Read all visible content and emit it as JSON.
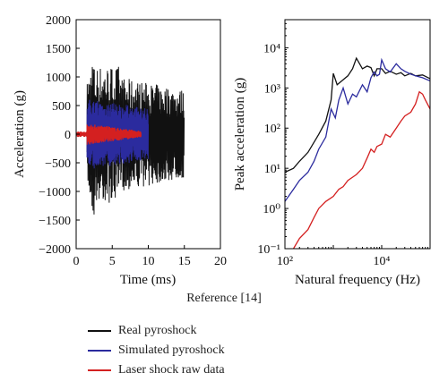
{
  "caption": "Reference [14]",
  "legend": {
    "items": [
      {
        "label": "Real pyroshock",
        "color": "#111111"
      },
      {
        "label": "Simulated pyroshock",
        "color": "#2b2b9e"
      },
      {
        "label": "Laser shock raw data",
        "color": "#d42020"
      }
    ]
  },
  "chart_data": [
    {
      "type": "line",
      "title": "",
      "xlabel": "Time (ms)",
      "ylabel": "Acceleration (g)",
      "xlim": [
        0,
        20
      ],
      "ylim": [
        -2000,
        2000
      ],
      "xticks": [
        "0",
        "5",
        "10",
        "15",
        "20"
      ],
      "yticks": [
        "2000",
        "1500",
        "1000",
        "500",
        "0",
        "−500",
        "−1000",
        "−1500",
        "−2000"
      ],
      "grid": false,
      "series": [
        {
          "name": "Real pyroshock",
          "color": "#111111",
          "time_range": [
            1.5,
            15
          ],
          "peak_max": 1750,
          "peak_min": -1650
        },
        {
          "name": "Simulated pyroshock",
          "color": "#2b2b9e",
          "time_range": [
            1.5,
            10
          ],
          "peak_max": 700,
          "peak_min": -650
        },
        {
          "name": "Laser shock raw data",
          "color": "#d42020",
          "time_range": [
            0,
            9
          ],
          "peak_max": 200,
          "peak_min": -200
        }
      ]
    },
    {
      "type": "line",
      "title": "",
      "xlabel": "Natural frequency (Hz)",
      "ylabel": "Peak acceleration (g)",
      "xscale": "log",
      "yscale": "log",
      "xlim": [
        100,
        100000
      ],
      "ylim": [
        0.1,
        50000
      ],
      "xticks": [
        "10²",
        "10⁴"
      ],
      "yticks": [
        "10⁴",
        "10³",
        "10²",
        "10¹",
        "10⁰",
        "10⁻¹"
      ],
      "grid": false,
      "series": [
        {
          "name": "Real pyroshock",
          "color": "#111111",
          "x": [
            100,
            150,
            200,
            300,
            500,
            700,
            900,
            1000,
            1200,
            1500,
            2000,
            2500,
            3000,
            4000,
            5000,
            6000,
            7000,
            8000,
            10000,
            12000,
            15000,
            20000,
            25000,
            30000,
            40000,
            50000,
            70000,
            100000
          ],
          "y": [
            8,
            10,
            15,
            25,
            70,
            150,
            500,
            2300,
            1200,
            1500,
            2000,
            3000,
            5500,
            3000,
            3500,
            3200,
            2000,
            3000,
            3000,
            2300,
            2600,
            2200,
            2400,
            2000,
            2300,
            2000,
            2100,
            1700
          ]
        },
        {
          "name": "Simulated pyroshock",
          "color": "#2b2b9e",
          "x": [
            100,
            150,
            200,
            300,
            400,
            500,
            700,
            900,
            1100,
            1300,
            1600,
            2000,
            2500,
            3000,
            4000,
            5000,
            6000,
            7000,
            8000,
            9000,
            10000,
            12000,
            15000,
            20000,
            25000,
            30000,
            40000,
            50000,
            70000,
            100000
          ],
          "y": [
            1.5,
            3,
            5,
            8,
            15,
            30,
            60,
            300,
            180,
            500,
            1000,
            400,
            700,
            600,
            1200,
            800,
            1800,
            2500,
            2000,
            2200,
            5000,
            3000,
            2500,
            4000,
            3000,
            2600,
            2200,
            2000,
            1800,
            1500
          ]
        },
        {
          "name": "Laser shock raw data",
          "color": "#d42020",
          "x": [
            150,
            200,
            300,
            400,
            500,
            700,
            1000,
            1300,
            1600,
            2000,
            2500,
            3000,
            4000,
            5000,
            6000,
            7000,
            8000,
            10000,
            12000,
            15000,
            20000,
            25000,
            30000,
            40000,
            50000,
            60000,
            70000,
            80000,
            100000
          ],
          "y": [
            0.1,
            0.18,
            0.3,
            0.6,
            1,
            1.5,
            2,
            3,
            3.5,
            5,
            6,
            7,
            10,
            18,
            30,
            25,
            35,
            40,
            70,
            60,
            100,
            150,
            200,
            250,
            400,
            800,
            700,
            500,
            300
          ]
        }
      ]
    }
  ]
}
